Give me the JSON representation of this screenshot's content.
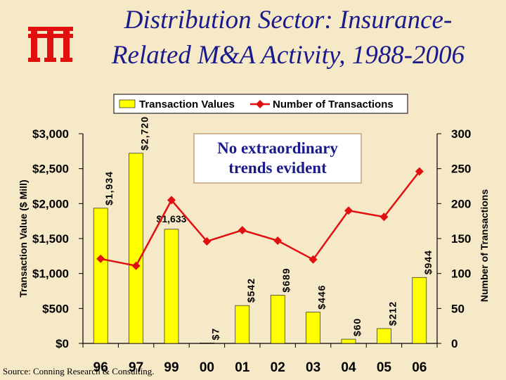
{
  "title_line1": "Distribution Sector: Insurance-",
  "title_line2": "Related M&A Activity, 1988-2006",
  "source": "Source: Conning Research & Consulting.",
  "callout": [
    "No extraordinary",
    "trends evident"
  ],
  "colors": {
    "bar": "#ffff00",
    "line": "#e01010",
    "title": "#1a1a8c",
    "logo": "#e01010",
    "background": "#f6e9c8"
  },
  "chart_data": {
    "type": "bar",
    "categories": [
      "96",
      "97",
      "99",
      "00",
      "01",
      "02",
      "03",
      "04",
      "05",
      "06"
    ],
    "series": [
      {
        "name": "Transaction Values",
        "axis": "left",
        "values": [
          1934,
          2720,
          1633,
          7,
          542,
          689,
          446,
          60,
          212,
          944
        ],
        "labels": [
          "$1,934",
          "$2,720",
          "$1,633",
          "$7",
          "$542",
          "$689",
          "$446",
          "$60",
          "$212",
          "$944"
        ]
      },
      {
        "name": "Number of Transactions",
        "axis": "right",
        "type": "line",
        "values": [
          121,
          111,
          205,
          146,
          162,
          147,
          120,
          190,
          181,
          246
        ]
      }
    ],
    "ylabel_left": "Transaction Value ($ Mill)",
    "ylabel_right": "Number of Transactions",
    "ylim_left": [
      0,
      3000
    ],
    "ylim_right": [
      0,
      300
    ],
    "yticks_left": [
      "$0",
      "$500",
      "$1,000",
      "$1,500",
      "$2,000",
      "$2,500",
      "$3,000"
    ],
    "yticks_right": [
      "0",
      "50",
      "100",
      "150",
      "200",
      "250",
      "300"
    ],
    "grid": false,
    "legend_position": "top"
  }
}
